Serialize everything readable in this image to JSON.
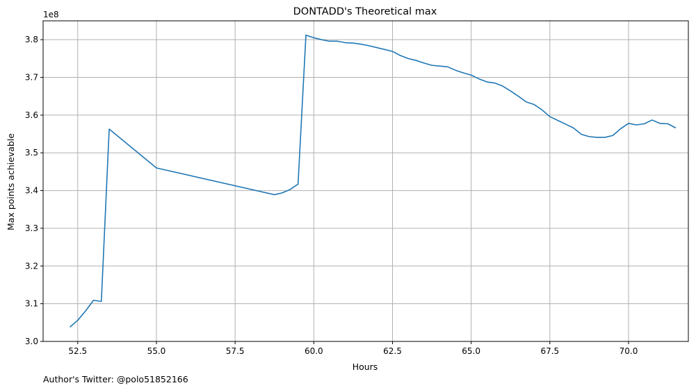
{
  "chart_data": {
    "type": "line",
    "title": "DONTADD's Theoretical max",
    "xlabel": "Hours",
    "ylabel": "Max points achievable",
    "y_offset_label": "1e8",
    "footer": "Author's Twitter: @polo51852166",
    "xlim": [
      51.4,
      71.9
    ],
    "ylim": [
      3.0,
      3.85
    ],
    "x_ticks": [
      52.5,
      55.0,
      57.5,
      60.0,
      62.5,
      65.0,
      67.5,
      70.0
    ],
    "x_tick_labels": [
      "52.5",
      "55.0",
      "57.5",
      "60.0",
      "62.5",
      "65.0",
      "67.5",
      "70.0"
    ],
    "y_ticks": [
      3.0,
      3.1,
      3.2,
      3.3,
      3.4,
      3.5,
      3.6,
      3.7,
      3.8
    ],
    "y_tick_labels": [
      "3.0",
      "3.1",
      "3.2",
      "3.3",
      "3.4",
      "3.5",
      "3.6",
      "3.7",
      "3.8"
    ],
    "grid": true,
    "line_color": "#1f77b4",
    "series": [
      {
        "x": [
          52.25,
          52.5,
          52.75,
          53.0,
          53.25,
          53.5,
          55.0,
          58.75,
          59.0,
          59.25,
          59.5,
          59.75,
          60.0,
          60.25,
          60.5,
          60.75,
          61.0,
          61.25,
          61.5,
          61.75,
          62.0,
          62.25,
          62.5,
          62.75,
          63.0,
          63.25,
          63.5,
          63.75,
          64.0,
          64.25,
          64.5,
          64.75,
          65.0,
          65.25,
          65.5,
          65.75,
          66.0,
          66.25,
          66.5,
          66.75,
          67.0,
          67.25,
          67.5,
          67.75,
          68.0,
          68.25,
          68.5,
          68.75,
          69.0,
          69.25,
          69.5,
          69.75,
          70.0,
          70.25,
          70.5,
          70.75,
          71.0,
          71.25,
          71.5
        ],
        "values": [
          3.038,
          3.056,
          3.081,
          3.109,
          3.106,
          3.563,
          3.46,
          3.389,
          3.394,
          3.403,
          3.417,
          3.812,
          3.805,
          3.8,
          3.796,
          3.796,
          3.792,
          3.791,
          3.788,
          3.784,
          3.779,
          3.774,
          3.769,
          3.758,
          3.75,
          3.745,
          3.738,
          3.732,
          3.73,
          3.728,
          3.719,
          3.712,
          3.706,
          3.696,
          3.688,
          3.685,
          3.677,
          3.664,
          3.65,
          3.635,
          3.628,
          3.614,
          3.596,
          3.586,
          3.576,
          3.566,
          3.549,
          3.543,
          3.541,
          3.541,
          3.546,
          3.564,
          3.578,
          3.574,
          3.577,
          3.587,
          3.578,
          3.577,
          3.566
        ]
      }
    ]
  }
}
